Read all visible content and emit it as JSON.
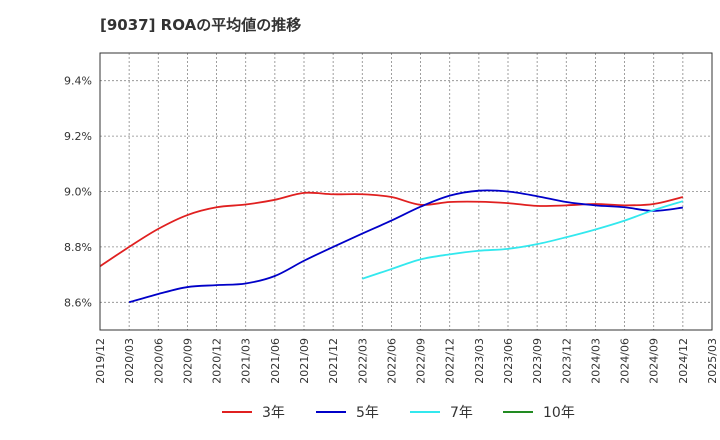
{
  "chart_data": {
    "type": "line",
    "title": "[9037]  ROAの平均値の推移",
    "xlabel": "",
    "ylabel": "",
    "ylim": [
      8.5,
      9.5
    ],
    "yticks": [
      8.6,
      8.8,
      9.0,
      9.2,
      9.4
    ],
    "ytick_labels": [
      "8.6%",
      "8.8%",
      "9.0%",
      "9.2%",
      "9.4%"
    ],
    "xticks": [
      "2019/12",
      "2020/03",
      "2020/06",
      "2020/09",
      "2020/12",
      "2021/03",
      "2021/06",
      "2021/09",
      "2021/12",
      "2022/03",
      "2022/06",
      "2022/09",
      "2022/12",
      "2023/03",
      "2023/06",
      "2023/09",
      "2023/12",
      "2024/03",
      "2024/06",
      "2024/09",
      "2024/12",
      "2025/03"
    ],
    "grid": true,
    "legend_position": "bottom",
    "series": [
      {
        "name": "3年",
        "color": "#e02020",
        "x": [
          "2019/12",
          "2020/03",
          "2020/06",
          "2020/09",
          "2020/12",
          "2021/03",
          "2021/06",
          "2021/09",
          "2021/12",
          "2022/03",
          "2022/06",
          "2022/09",
          "2022/12",
          "2023/03",
          "2023/06",
          "2023/09",
          "2023/12",
          "2024/03",
          "2024/06",
          "2024/09",
          "2024/12"
        ],
        "values": [
          8.73,
          8.8,
          8.865,
          8.915,
          8.943,
          8.953,
          8.97,
          8.995,
          8.99,
          8.99,
          8.98,
          8.952,
          8.962,
          8.963,
          8.958,
          8.948,
          8.95,
          8.955,
          8.95,
          8.955,
          8.98
        ]
      },
      {
        "name": "5年",
        "color": "#0000c8",
        "x": [
          "2020/03",
          "2020/06",
          "2020/09",
          "2020/12",
          "2021/03",
          "2021/06",
          "2021/09",
          "2021/12",
          "2022/03",
          "2022/06",
          "2022/09",
          "2022/12",
          "2023/03",
          "2023/06",
          "2023/09",
          "2023/12",
          "2024/03",
          "2024/06",
          "2024/09",
          "2024/12"
        ],
        "values": [
          8.6,
          8.63,
          8.655,
          8.662,
          8.668,
          8.695,
          8.75,
          8.8,
          8.848,
          8.895,
          8.945,
          8.985,
          9.003,
          9.0,
          8.983,
          8.962,
          8.95,
          8.943,
          8.93,
          8.942
        ]
      },
      {
        "name": "7年",
        "color": "#33e8ee",
        "x": [
          "2022/03",
          "2022/06",
          "2022/09",
          "2022/12",
          "2023/03",
          "2023/06",
          "2023/09",
          "2023/12",
          "2024/03",
          "2024/06",
          "2024/09",
          "2024/12"
        ],
        "values": [
          8.685,
          8.72,
          8.755,
          8.773,
          8.786,
          8.793,
          8.81,
          8.835,
          8.863,
          8.895,
          8.933,
          8.965
        ]
      },
      {
        "name": "10年",
        "color": "#228b22",
        "x": [],
        "values": []
      }
    ]
  }
}
